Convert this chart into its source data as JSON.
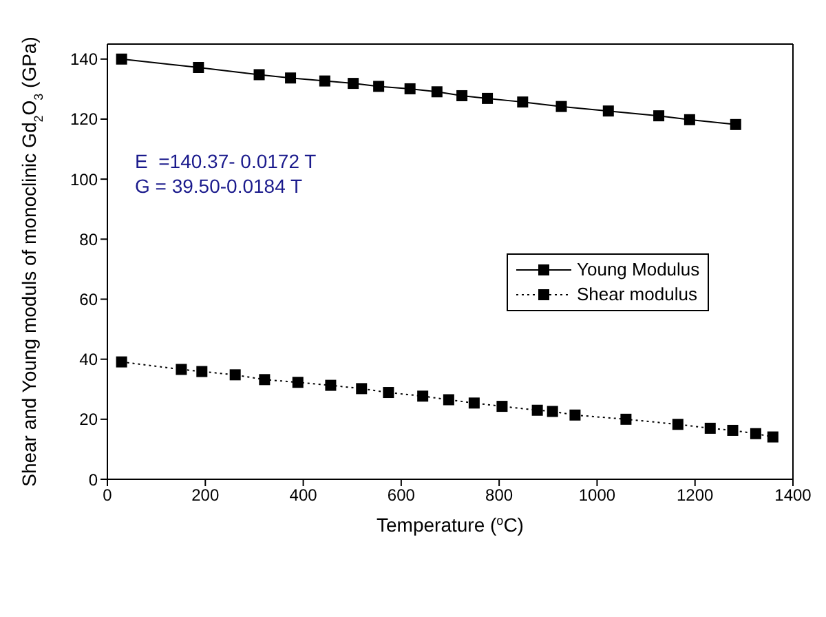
{
  "chart_data": {
    "type": "line",
    "xlabel": "Temperature ($^{o}$C)",
    "ylabel": "Shear and Young moduls of monoclinic Gd$_{2}$O$_{3}$ (GPa)",
    "xlim": [
      0,
      1400
    ],
    "xticks": [
      0,
      200,
      400,
      600,
      800,
      1000,
      1200,
      1400
    ],
    "ylim": [
      0,
      145
    ],
    "yticks": [
      0,
      20,
      40,
      60,
      80,
      100,
      120,
      140
    ],
    "marker": "square",
    "legend": "right",
    "annotations": [
      "E  =140.37- 0.0172 T",
      "G = 39.50-0.0184 T"
    ],
    "series": [
      {
        "name": "Young Modulus",
        "color": "#000000",
        "line_style": "solid",
        "x": [
          29,
          186,
          310,
          374,
          444,
          502,
          554,
          618,
          673,
          724,
          776,
          848,
          927,
          1023,
          1126,
          1189,
          1283
        ],
        "values": [
          140.0,
          137.2,
          134.8,
          133.7,
          132.7,
          131.9,
          130.9,
          130.1,
          129.1,
          127.8,
          126.9,
          125.7,
          124.2,
          122.7,
          121.1,
          119.8,
          118.2
        ]
      },
      {
        "name": "Shear modulus",
        "color": "#000000",
        "line_style": "dotted",
        "x": [
          29,
          151,
          193,
          261,
          321,
          389,
          456,
          519,
          574,
          644,
          697,
          749,
          806,
          878,
          909,
          955,
          1059,
          1165,
          1231,
          1277,
          1324,
          1359
        ],
        "values": [
          39.1,
          36.6,
          35.9,
          34.8,
          33.2,
          32.3,
          31.3,
          30.2,
          28.9,
          27.7,
          26.5,
          25.4,
          24.3,
          23.0,
          22.6,
          21.4,
          20.0,
          18.3,
          17.0,
          16.3,
          15.2,
          14.1
        ]
      }
    ]
  }
}
